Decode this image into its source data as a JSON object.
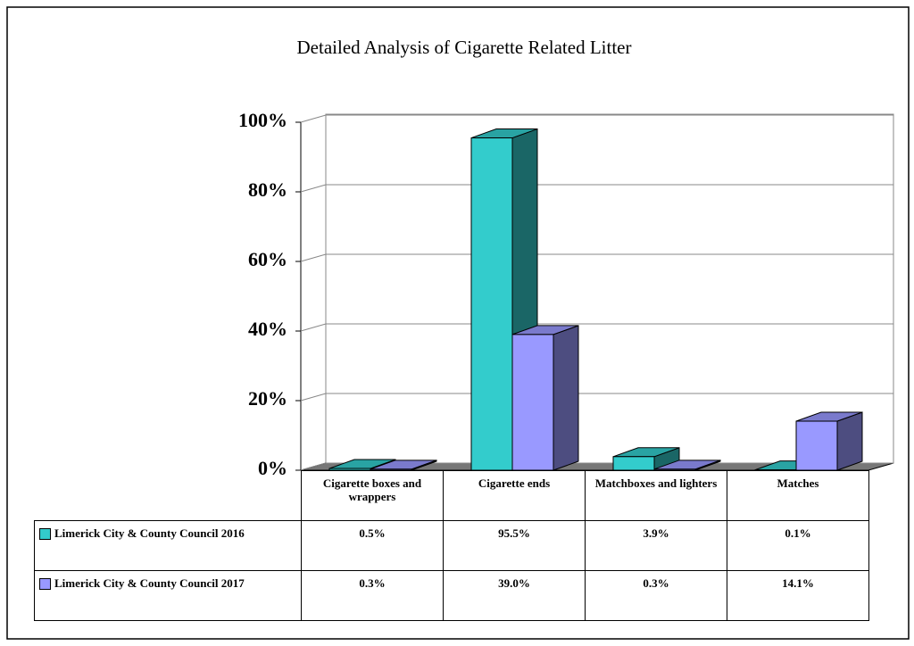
{
  "chart_data": {
    "type": "bar3d",
    "title": "Detailed Analysis of Cigarette Related Litter",
    "categories": [
      "Cigarette boxes and wrappers",
      "Cigarette ends",
      "Matchboxes and lighters",
      "Matches"
    ],
    "series": [
      {
        "name": "Limerick City & County Council 2016",
        "color": "#33cccc",
        "values": [
          0.5,
          95.5,
          3.9,
          0.1
        ],
        "value_labels": [
          "0.5%",
          "95.5%",
          "3.9%",
          "0.1%"
        ]
      },
      {
        "name": "Limerick City & County Council 2017",
        "color": "#9999ff",
        "values": [
          0.3,
          39.0,
          0.3,
          14.1
        ],
        "value_labels": [
          "0.3%",
          "39.0%",
          "0.3%",
          "14.1%"
        ]
      }
    ],
    "ylim": [
      0,
      100
    ],
    "yticks": [
      {
        "value": 0,
        "label": "0%"
      },
      {
        "value": 20,
        "label": "20%"
      },
      {
        "value": 40,
        "label": "40%"
      },
      {
        "value": 60,
        "label": "60%"
      },
      {
        "value": 80,
        "label": "80%"
      },
      {
        "value": 100,
        "label": "100%"
      }
    ],
    "grid": true
  }
}
